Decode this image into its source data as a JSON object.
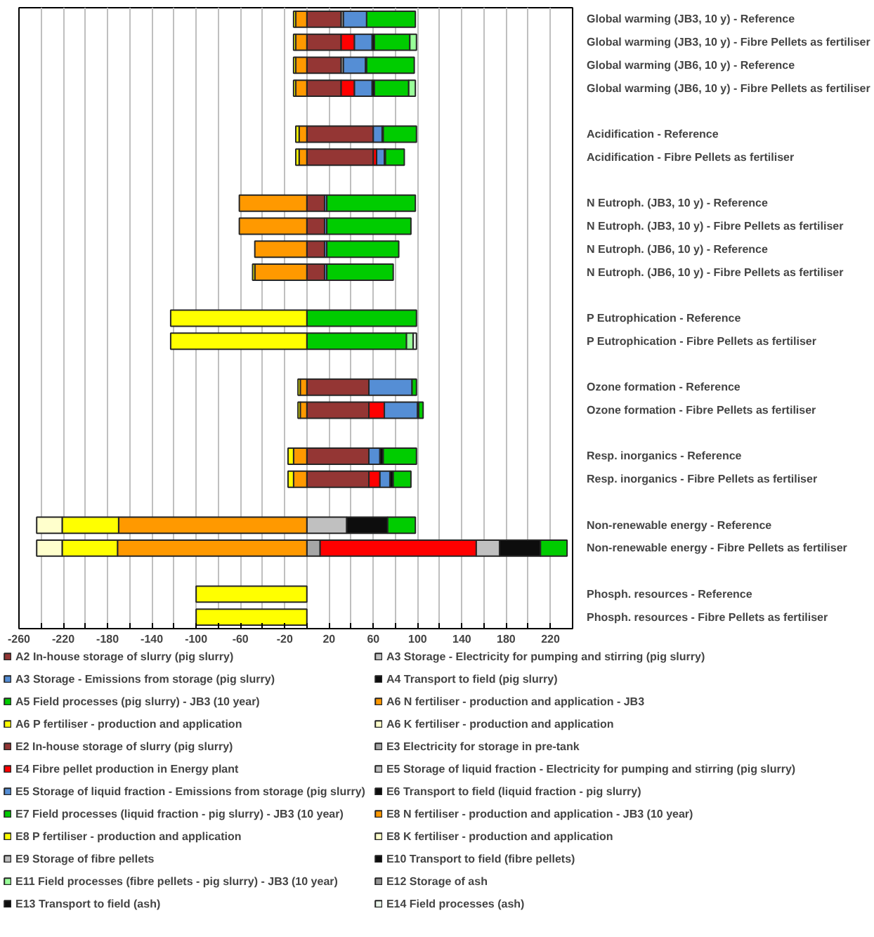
{
  "chart_data": {
    "type": "bar",
    "orientation": "horizontal",
    "stacked": true,
    "grid": "x",
    "legend": "bottom",
    "categories": [
      "Global warming (JB3, 10 y) - Reference",
      "Global warming (JB3, 10 y) - Fibre Pellets as fertiliser",
      "Global warming (JB6, 10 y) - Reference",
      "Global warming (JB6, 10 y) - Fibre Pellets as fertiliser",
      null,
      "Acidification - Reference",
      "Acidification - Fibre Pellets as fertiliser",
      null,
      "N Eutroph. (JB3, 10 y) - Reference",
      "N Eutroph. (JB3, 10 y) - Fibre Pellets as fertiliser",
      "N Eutroph. (JB6, 10 y) - Reference",
      "N Eutroph. (JB6, 10 y) - Fibre Pellets as fertiliser",
      null,
      "P Eutrophication - Reference",
      "P Eutrophication - Fibre Pellets as fertiliser",
      null,
      "Ozone formation - Reference",
      "Ozone formation - Fibre Pellets as fertiliser",
      null,
      "Resp. inorganics - Reference",
      "Resp. inorganics - Fibre Pellets as fertiliser",
      null,
      "Non-renewable energy - Reference",
      "Non-renewable energy - Fibre Pellets as fertiliser",
      null,
      "Phosph. resources - Reference",
      "Phosph. resources - Fibre Pellets as fertiliser"
    ],
    "xlim": [
      -260,
      240
    ],
    "xticks": [
      -260,
      {
        "value": -240,
        "label": null
      },
      -220,
      {
        "value": -200,
        "label": null
      },
      -180,
      {
        "value": -160,
        "label": null
      },
      -140,
      {
        "value": -120,
        "label": null
      },
      -100,
      {
        "value": -80,
        "label": null
      },
      -60,
      {
        "value": -40,
        "label": null
      },
      -20,
      {
        "value": 0,
        "label": null
      },
      20,
      {
        "value": 40,
        "label": null
      },
      60,
      {
        "value": 80,
        "label": null
      },
      100,
      {
        "value": 120,
        "label": null
      },
      140,
      {
        "value": 160,
        "label": null
      },
      180,
      {
        "value": 200,
        "label": null
      },
      220,
      {
        "value": 240,
        "label": null
      }
    ],
    "series": [
      {
        "name": "A2 In-house storage of slurry (pig slurry)",
        "color": "#943634",
        "values": [
          31,
          null,
          31,
          null,
          null,
          60,
          null,
          null,
          16,
          null,
          16,
          null,
          null,
          null,
          null,
          null,
          56,
          null,
          null,
          56,
          null,
          null,
          null,
          null,
          null,
          null,
          null
        ]
      },
      {
        "name": "A3 Storage - Electricity for pumping and stirring (pig slurry)",
        "color": "#c0c0c0",
        "values": [
          2,
          null,
          2,
          null,
          null,
          null,
          null,
          null,
          null,
          null,
          null,
          null,
          null,
          null,
          null,
          null,
          null,
          null,
          null,
          null,
          null,
          null,
          36,
          null,
          null,
          null,
          null
        ]
      },
      {
        "name": "A3 Storage - Emissions from storage (pig slurry)",
        "color": "#558ed5",
        "values": [
          21,
          null,
          20,
          null,
          null,
          8,
          null,
          null,
          2,
          null,
          2,
          null,
          null,
          null,
          null,
          null,
          39,
          null,
          null,
          10,
          null,
          null,
          null,
          null,
          null,
          null,
          null
        ]
      },
      {
        "name": "A4 Transport to field (pig slurry)",
        "color": "#0d0d0d",
        "values": [
          null,
          null,
          1,
          null,
          null,
          1,
          null,
          null,
          null,
          null,
          null,
          null,
          null,
          null,
          null,
          null,
          null,
          null,
          null,
          3,
          null,
          null,
          37,
          null,
          null,
          null,
          null
        ]
      },
      {
        "name": "A5 Field processes (pig slurry) - JB3 (10 year)",
        "color": "#00cc00",
        "values": [
          44,
          null,
          43,
          null,
          null,
          30,
          null,
          null,
          80,
          null,
          65,
          null,
          null,
          99,
          null,
          null,
          4,
          null,
          null,
          30,
          null,
          null,
          25,
          null,
          null,
          null,
          null
        ]
      },
      {
        "name": "A6 N fertiliser - production and application - JB3",
        "color": "#ff9900",
        "values": [
          -10,
          null,
          -10,
          null,
          null,
          -7,
          null,
          null,
          -61,
          null,
          -47,
          null,
          null,
          null,
          null,
          null,
          -6,
          null,
          null,
          -12,
          null,
          null,
          -170,
          null,
          null,
          null,
          null
        ]
      },
      {
        "name": "A6 P fertiliser - production and application",
        "color": "#ffff00",
        "values": [
          -2,
          null,
          -2,
          null,
          null,
          -3,
          null,
          null,
          null,
          null,
          null,
          null,
          null,
          -123,
          null,
          null,
          -2,
          null,
          null,
          -5,
          null,
          null,
          -51,
          null,
          null,
          -100,
          null
        ]
      },
      {
        "name": "A6 K fertiliser - production and application",
        "color": "#ffffcc",
        "values": [
          null,
          null,
          null,
          null,
          null,
          null,
          null,
          null,
          null,
          null,
          null,
          null,
          null,
          null,
          null,
          null,
          null,
          null,
          null,
          null,
          null,
          null,
          -23,
          null,
          null,
          null,
          null
        ]
      },
      {
        "name": "E2 In-house storage of slurry (pig slurry)",
        "color": "#943634",
        "values": [
          null,
          31,
          null,
          31,
          null,
          null,
          60,
          null,
          null,
          16,
          null,
          16,
          null,
          null,
          null,
          null,
          null,
          56,
          null,
          null,
          56,
          null,
          null,
          null,
          null,
          null,
          null
        ]
      },
      {
        "name": "E3 Electricity for storage in pre-tank",
        "color": "#a6a6a6",
        "values": [
          null,
          null,
          null,
          null,
          null,
          null,
          null,
          null,
          null,
          null,
          null,
          null,
          null,
          null,
          null,
          null,
          null,
          null,
          null,
          null,
          null,
          null,
          null,
          12,
          null,
          null,
          null
        ]
      },
      {
        "name": "E4 Fibre pellet production in Energy plant",
        "color": "#ff0000",
        "values": [
          null,
          12,
          null,
          12,
          null,
          null,
          3,
          null,
          null,
          null,
          null,
          null,
          null,
          null,
          null,
          null,
          null,
          14,
          null,
          null,
          10,
          null,
          null,
          141,
          null,
          null,
          null
        ]
      },
      {
        "name": "E5 Storage of liquid fraction - Electricity for pumping and stirring (pig slurry)",
        "color": "#c0c0c0",
        "values": [
          null,
          null,
          null,
          null,
          null,
          null,
          null,
          null,
          null,
          null,
          null,
          null,
          null,
          null,
          null,
          null,
          null,
          null,
          null,
          null,
          null,
          null,
          null,
          21,
          null,
          null,
          null
        ]
      },
      {
        "name": "E5 Storage of liquid fraction - Emissions from storage (pig slurry)",
        "color": "#558ed5",
        "values": [
          null,
          16,
          null,
          16,
          null,
          null,
          7,
          null,
          null,
          2,
          null,
          2,
          null,
          null,
          null,
          null,
          null,
          30,
          null,
          null,
          9,
          null,
          null,
          null,
          null,
          null,
          null
        ]
      },
      {
        "name": "E6 Transport to field (liquid fraction - pig slurry)",
        "color": "#0d0d0d",
        "values": [
          null,
          2,
          null,
          2,
          null,
          null,
          1,
          null,
          null,
          null,
          null,
          null,
          null,
          null,
          null,
          null,
          null,
          1,
          null,
          null,
          3,
          null,
          null,
          37,
          null,
          null,
          null
        ]
      },
      {
        "name": "E7 Field processes (liquid fraction - pig slurry) - JB3 (10 year)",
        "color": "#00cc00",
        "values": [
          null,
          32,
          null,
          31,
          null,
          null,
          17,
          null,
          null,
          76,
          null,
          60,
          null,
          null,
          90,
          null,
          null,
          4,
          null,
          null,
          16,
          null,
          null,
          24,
          null,
          null,
          null
        ]
      },
      {
        "name": "E8 N fertiliser - production and application - JB3 (10 year)",
        "color": "#ff9900",
        "values": [
          null,
          -10,
          null,
          -10,
          null,
          null,
          -7,
          null,
          null,
          -61,
          null,
          -47,
          null,
          null,
          null,
          null,
          null,
          -6,
          null,
          null,
          -12,
          null,
          null,
          -171,
          null,
          null,
          null
        ]
      },
      {
        "name": "E8 P fertiliser - production and application",
        "color": "#ffff00",
        "values": [
          null,
          -2,
          null,
          -2,
          null,
          null,
          -3,
          null,
          null,
          null,
          null,
          -2,
          null,
          null,
          -123,
          null,
          null,
          -2,
          null,
          null,
          -5,
          null,
          null,
          -50,
          null,
          null,
          -100
        ]
      },
      {
        "name": "E8 K fertiliser - production and application",
        "color": "#ffffcc",
        "values": [
          null,
          null,
          null,
          null,
          null,
          null,
          null,
          null,
          null,
          null,
          null,
          null,
          null,
          null,
          null,
          null,
          null,
          null,
          null,
          null,
          null,
          null,
          null,
          -23,
          null,
          null,
          null
        ]
      },
      {
        "name": "E9 Storage of fibre pellets",
        "color": "#bfbfbf",
        "values": [
          null,
          null,
          null,
          null,
          null,
          null,
          null,
          null,
          null,
          null,
          null,
          null,
          null,
          null,
          null,
          null,
          null,
          null,
          null,
          null,
          null,
          null,
          null,
          null,
          null,
          null,
          null
        ]
      },
      {
        "name": "E10 Transport to field (fibre pellets)",
        "color": "#0d0d0d",
        "values": [
          null,
          null,
          null,
          null,
          null,
          null,
          null,
          null,
          null,
          null,
          null,
          null,
          null,
          null,
          null,
          null,
          null,
          null,
          null,
          null,
          null,
          null,
          null,
          null,
          null,
          null,
          null
        ]
      },
      {
        "name": "E11 Field processes (fibre pellets - pig slurry) - JB3 (10 year)",
        "color": "#99ff99",
        "values": [
          null,
          6,
          null,
          6,
          null,
          null,
          null,
          null,
          null,
          null,
          null,
          null,
          null,
          null,
          6,
          null,
          null,
          null,
          null,
          null,
          null,
          null,
          null,
          null,
          null,
          null,
          null
        ]
      },
      {
        "name": "E12 Storage of ash",
        "color": "#969696",
        "values": [
          null,
          null,
          null,
          null,
          null,
          null,
          null,
          null,
          null,
          null,
          null,
          null,
          null,
          null,
          null,
          null,
          null,
          null,
          null,
          null,
          null,
          null,
          null,
          null,
          null,
          null,
          null
        ]
      },
      {
        "name": "E13 Transport to field (ash)",
        "color": "#0d0d0d",
        "values": [
          null,
          null,
          null,
          null,
          null,
          null,
          null,
          null,
          null,
          null,
          null,
          null,
          null,
          null,
          null,
          null,
          null,
          null,
          null,
          null,
          null,
          null,
          null,
          null,
          null,
          null,
          null
        ]
      },
      {
        "name": "E14 Field processes (ash)",
        "color": "#ebf5eb",
        "values": [
          null,
          null,
          null,
          null,
          null,
          null,
          null,
          null,
          null,
          null,
          null,
          null,
          null,
          null,
          3,
          null,
          null,
          null,
          null,
          null,
          null,
          null,
          null,
          null,
          null,
          null,
          null
        ]
      }
    ]
  }
}
